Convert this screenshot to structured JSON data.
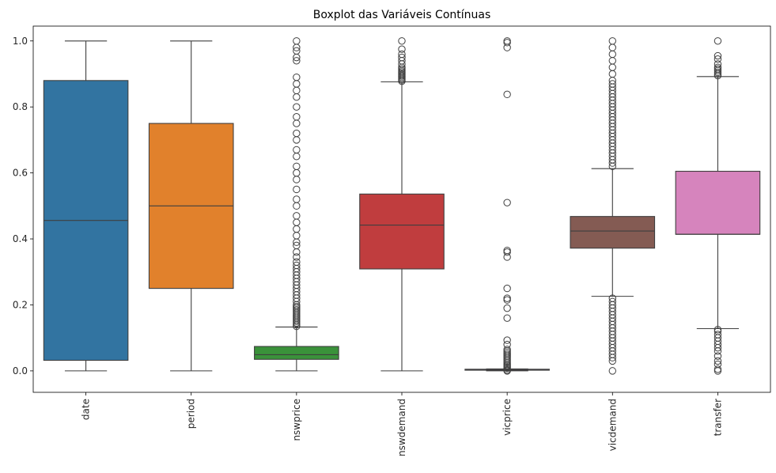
{
  "chart_data": {
    "type": "boxplot",
    "title": "Boxplot das Variáveis Contínuas",
    "xlabel": "",
    "ylabel": "",
    "ylim": [
      -0.065,
      1.045
    ],
    "yticks": [
      0.0,
      0.2,
      0.4,
      0.6,
      0.8,
      1.0
    ],
    "ytick_labels": [
      "0.0",
      "0.2",
      "0.4",
      "0.6",
      "0.8",
      "1.0"
    ],
    "grid": false,
    "categories": [
      "date",
      "period",
      "nswprice",
      "nswdemand",
      "vicprice",
      "vicdemand",
      "transfer"
    ],
    "boxes": [
      {
        "name": "date",
        "color": "#3274a1",
        "q1": 0.032,
        "median": 0.456,
        "q3": 0.88,
        "whisker_low": 0.0,
        "whisker_high": 1.0,
        "outliers": []
      },
      {
        "name": "period",
        "color": "#e1812c",
        "q1": 0.25,
        "median": 0.5,
        "q3": 0.75,
        "whisker_low": 0.0,
        "whisker_high": 1.0,
        "outliers": []
      },
      {
        "name": "nswprice",
        "color": "#3a923a",
        "q1": 0.035,
        "median": 0.049,
        "q3": 0.074,
        "whisker_low": 0.0,
        "whisker_high": 0.133,
        "outliers": [
          0.135,
          0.14,
          0.145,
          0.15,
          0.155,
          0.16,
          0.165,
          0.17,
          0.175,
          0.18,
          0.185,
          0.19,
          0.195,
          0.2,
          0.21,
          0.22,
          0.23,
          0.24,
          0.25,
          0.26,
          0.27,
          0.28,
          0.29,
          0.3,
          0.31,
          0.32,
          0.33,
          0.345,
          0.36,
          0.38,
          0.39,
          0.41,
          0.43,
          0.45,
          0.47,
          0.5,
          0.52,
          0.55,
          0.58,
          0.6,
          0.62,
          0.65,
          0.67,
          0.7,
          0.72,
          0.75,
          0.77,
          0.8,
          0.83,
          0.85,
          0.87,
          0.89,
          0.94,
          0.95,
          0.97,
          0.98,
          1.0
        ]
      },
      {
        "name": "nswdemand",
        "color": "#c03d3e",
        "q1": 0.309,
        "median": 0.442,
        "q3": 0.536,
        "whisker_low": 0.0,
        "whisker_high": 0.876,
        "outliers": [
          0.878,
          0.882,
          0.886,
          0.89,
          0.894,
          0.898,
          0.902,
          0.906,
          0.91,
          0.915,
          0.92,
          0.93,
          0.94,
          0.95,
          0.96,
          0.975,
          1.0
        ]
      },
      {
        "name": "vicprice",
        "color": "#9372b2",
        "q1": 0.002,
        "median": 0.003,
        "q3": 0.005,
        "whisker_low": 0.0,
        "whisker_high": 0.006,
        "outliers": [
          0.0,
          0.003,
          0.008,
          0.012,
          0.016,
          0.02,
          0.025,
          0.03,
          0.035,
          0.04,
          0.045,
          0.05,
          0.055,
          0.06,
          0.065,
          0.08,
          0.093,
          0.16,
          0.19,
          0.215,
          0.22,
          0.25,
          0.345,
          0.36,
          0.365,
          0.51,
          0.838,
          0.98,
          0.995,
          1.0
        ]
      },
      {
        "name": "vicdemand",
        "color": "#845b53",
        "q1": 0.372,
        "median": 0.424,
        "q3": 0.468,
        "whisker_low": 0.226,
        "whisker_high": 0.613,
        "outliers": [
          0.0,
          0.03,
          0.04,
          0.05,
          0.06,
          0.07,
          0.08,
          0.09,
          0.1,
          0.11,
          0.12,
          0.13,
          0.14,
          0.15,
          0.16,
          0.17,
          0.18,
          0.19,
          0.2,
          0.21,
          0.22,
          0.62,
          0.63,
          0.64,
          0.65,
          0.66,
          0.67,
          0.68,
          0.69,
          0.7,
          0.71,
          0.72,
          0.73,
          0.74,
          0.75,
          0.76,
          0.77,
          0.78,
          0.79,
          0.8,
          0.81,
          0.82,
          0.83,
          0.84,
          0.85,
          0.86,
          0.87,
          0.88,
          0.9,
          0.92,
          0.94,
          0.96,
          0.98,
          1.0
        ]
      },
      {
        "name": "transfer",
        "color": "#d684bd",
        "q1": 0.414,
        "median": 0.414,
        "q3": 0.605,
        "whisker_low": 0.128,
        "whisker_high": 0.892,
        "outliers": [
          0.0,
          0.005,
          0.02,
          0.03,
          0.045,
          0.06,
          0.07,
          0.08,
          0.09,
          0.1,
          0.11,
          0.12,
          0.125,
          0.895,
          0.9,
          0.905,
          0.91,
          0.915,
          0.92,
          0.93,
          0.945,
          0.955,
          1.0
        ]
      }
    ]
  }
}
